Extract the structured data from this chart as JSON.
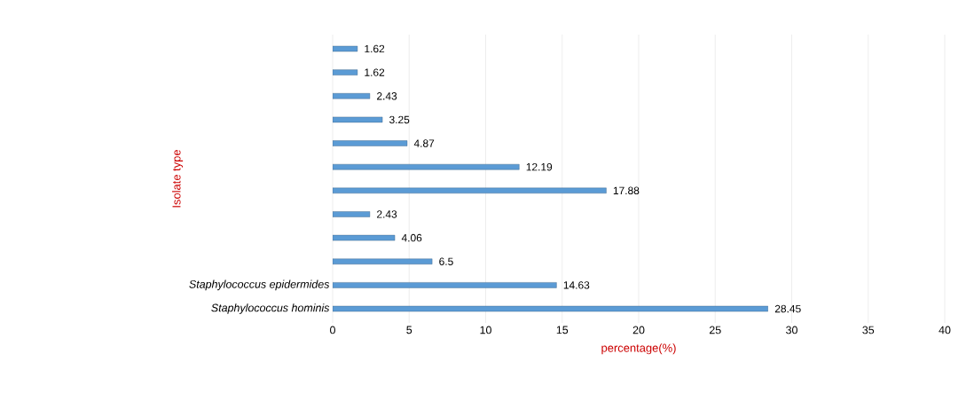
{
  "chart_data": {
    "type": "bar",
    "orientation": "horizontal",
    "categories": [
      null,
      null,
      null,
      null,
      null,
      null,
      null,
      null,
      null,
      null,
      "Staphylococcus epidermides",
      "Staphylococcus hominis"
    ],
    "values": [
      1.62,
      1.62,
      2.43,
      3.25,
      4.87,
      12.19,
      17.88,
      2.43,
      4.06,
      6.5,
      14.63,
      28.45
    ],
    "color": "#5b9bd5",
    "xlim": [
      0,
      40
    ],
    "xticks": [
      0,
      5,
      10,
      15,
      20,
      25,
      30,
      35,
      40
    ],
    "xlabel": "percentage(%)",
    "ylabel": "Isolate type",
    "data_labels": true,
    "grid": "x"
  }
}
